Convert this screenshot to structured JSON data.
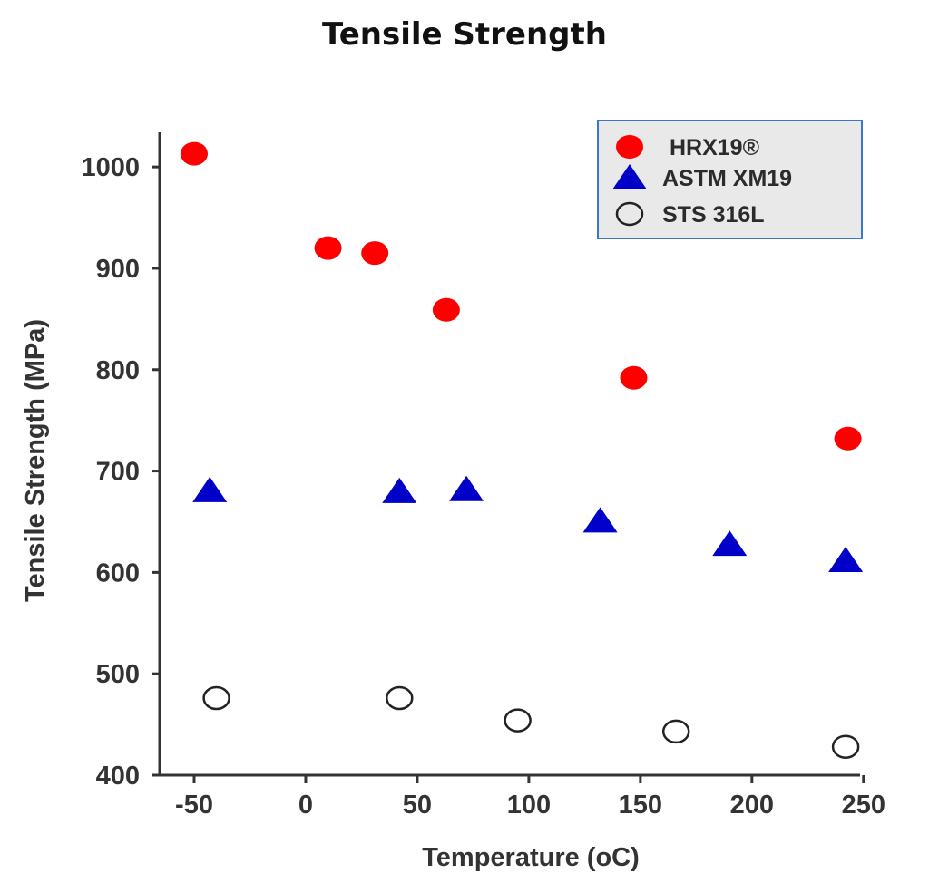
{
  "chart_data": {
    "type": "scatter",
    "title": "Tensile Strength",
    "xlabel": "Temperature (oC)",
    "ylabel": "Tensile Strength (MPa)",
    "xlim": [
      -60,
      250
    ],
    "ylim": [
      400,
      1030
    ],
    "xticks": [
      -50,
      0,
      50,
      100,
      150,
      200,
      250
    ],
    "yticks": [
      400,
      500,
      600,
      700,
      800,
      900,
      1000
    ],
    "grid": false,
    "legend_position": "top-right",
    "series": [
      {
        "name": "HRX19®",
        "marker": "filled-circle",
        "color": "#ff0000",
        "points": [
          [
            -50,
            1013
          ],
          [
            10,
            920
          ],
          [
            31,
            915
          ],
          [
            63,
            859
          ],
          [
            147,
            792
          ],
          [
            243,
            732
          ]
        ]
      },
      {
        "name": "ASTM XM19",
        "marker": "filled-triangle",
        "color": "#0000c8",
        "points": [
          [
            -43,
            681
          ],
          [
            42,
            680
          ],
          [
            72,
            682
          ],
          [
            132,
            651
          ],
          [
            190,
            628
          ],
          [
            242,
            612
          ]
        ]
      },
      {
        "name": "STS 316L",
        "marker": "open-circle",
        "color": "#222222",
        "points": [
          [
            -40,
            476
          ],
          [
            42,
            476
          ],
          [
            95,
            454
          ],
          [
            166,
            443
          ],
          [
            242,
            428
          ]
        ]
      }
    ]
  }
}
